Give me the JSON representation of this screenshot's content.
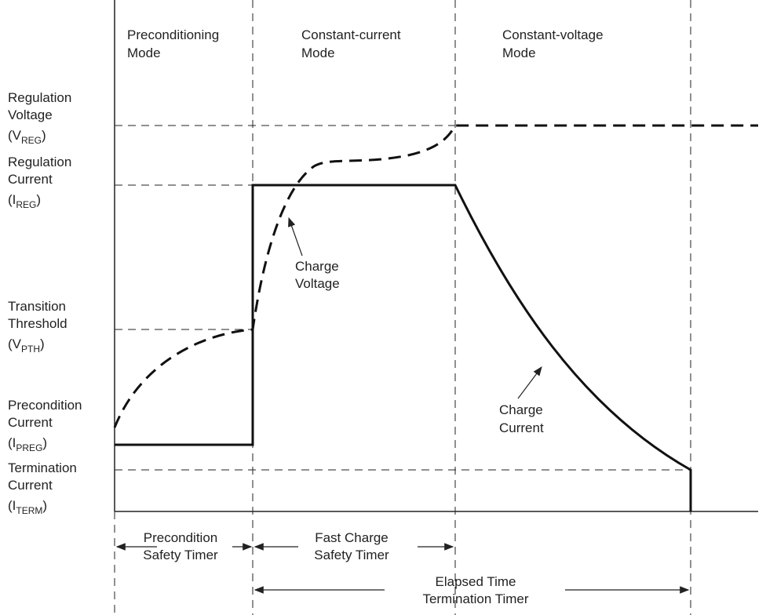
{
  "modes": [
    {
      "lines": [
        "Preconditioning",
        "Mode"
      ]
    },
    {
      "lines": [
        "Constant-current",
        "Mode"
      ]
    },
    {
      "lines": [
        "Constant-voltage",
        "Mode"
      ]
    }
  ],
  "levels": [
    {
      "lines": [
        "Regulation",
        "Voltage"
      ],
      "symbol": {
        "pre": "(V",
        "sub": "REG",
        "post": ")"
      }
    },
    {
      "lines": [
        "Regulation",
        "Current"
      ],
      "symbol": {
        "pre": "(I",
        "sub": "REG",
        "post": ")"
      }
    },
    {
      "lines": [
        "Transition",
        "Threshold"
      ],
      "symbol": {
        "pre": "(V",
        "sub": "PTH",
        "post": ")"
      }
    },
    {
      "lines": [
        "Precondition",
        "Current"
      ],
      "symbol": {
        "pre": "(I",
        "sub": "PREG",
        "post": ")"
      }
    },
    {
      "lines": [
        "Termination",
        "Current"
      ],
      "symbol": {
        "pre": "(I",
        "sub": "TERM",
        "post": ")"
      }
    }
  ],
  "annotations": [
    {
      "lines": [
        "Charge",
        "Voltage"
      ]
    },
    {
      "lines": [
        "Charge",
        "Current"
      ]
    }
  ],
  "timers": [
    {
      "lines": [
        "Precondition",
        "Safety Timer"
      ]
    },
    {
      "lines": [
        "Fast Charge",
        "Safety Timer"
      ]
    },
    {
      "lines": [
        "Elapsed Time",
        "Termination Timer"
      ]
    }
  ]
}
